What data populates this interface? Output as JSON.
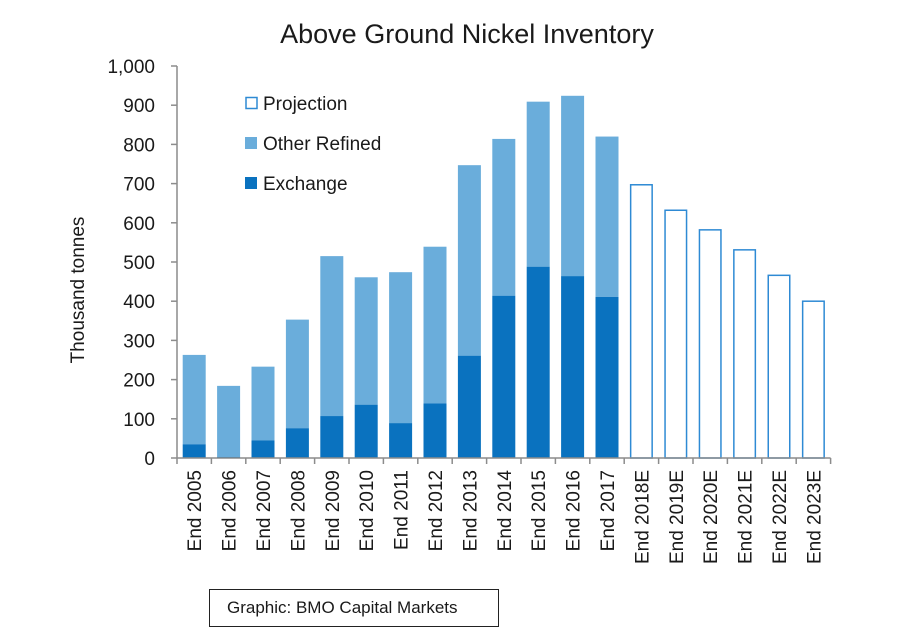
{
  "chart_data": {
    "type": "bar",
    "stacked": true,
    "title": "Above Ground Nickel Inventory",
    "xlabel": "",
    "ylabel": "Thousand tonnes",
    "ylim": [
      0,
      1000
    ],
    "yticks": [
      0,
      100,
      200,
      300,
      400,
      500,
      600,
      700,
      800,
      900,
      1000
    ],
    "ytick_labels": [
      "0",
      "100",
      "200",
      "300",
      "400",
      "500",
      "600",
      "700",
      "800",
      "900",
      "1,000"
    ],
    "grid": false,
    "legend_position": "top-left",
    "categories": [
      "End 2005",
      "End 2006",
      "End 2007",
      "End 2008",
      "End 2009",
      "End 2010",
      "End 2011",
      "End 2012",
      "End 2013",
      "End 2014",
      "End 2015",
      "End 2016",
      "End 2017",
      "End 2018E",
      "End 2019E",
      "End 2020E",
      "End 2021E",
      "End 2022E",
      "End 2023E"
    ],
    "series": [
      {
        "name": "Exchange",
        "color": "#0a72bf",
        "style": "filled",
        "values": [
          35,
          3,
          45,
          76,
          107,
          136,
          89,
          139,
          261,
          414,
          488,
          464,
          411,
          null,
          null,
          null,
          null,
          null,
          null
        ]
      },
      {
        "name": "Other Refined",
        "color": "#6aaddb",
        "style": "filled",
        "values": [
          228,
          181,
          188,
          277,
          408,
          325,
          385,
          400,
          486,
          400,
          421,
          460,
          409,
          null,
          null,
          null,
          null,
          null,
          null
        ]
      },
      {
        "name": "Projection",
        "color": "#2e8ad4",
        "style": "outline",
        "values": [
          null,
          null,
          null,
          null,
          null,
          null,
          null,
          null,
          null,
          null,
          null,
          null,
          null,
          697,
          632,
          582,
          531,
          466,
          400
        ]
      }
    ],
    "totals": [
      263,
      184,
      233,
      353,
      515,
      461,
      474,
      539,
      747,
      814,
      909,
      924,
      820,
      697,
      632,
      582,
      531,
      466,
      400
    ],
    "legend": [
      {
        "name": "Projection",
        "style": "outline",
        "color": "#2e8ad4"
      },
      {
        "name": "Other Refined",
        "style": "filled",
        "color": "#6aaddb"
      },
      {
        "name": "Exchange",
        "style": "filled",
        "color": "#0a72bf"
      }
    ]
  },
  "credit": "Graphic: BMO Capital Markets"
}
